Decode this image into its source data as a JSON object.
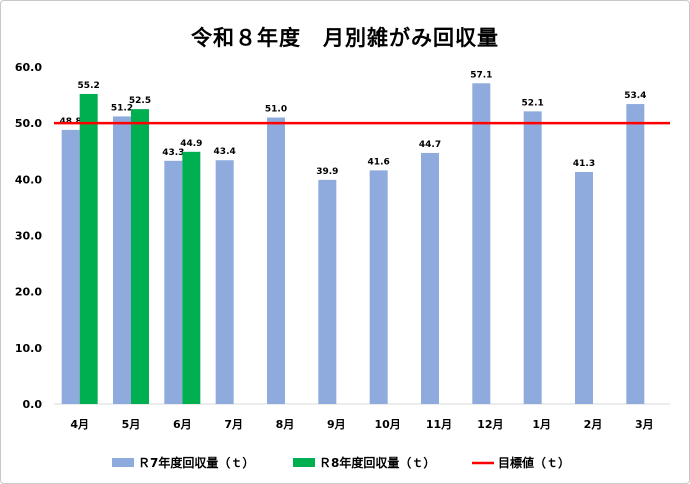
{
  "chart_data": {
    "type": "bar",
    "title": "令和８年度　月別雑がみ回収量",
    "categories": [
      "4月",
      "5月",
      "6月",
      "7月",
      "8月",
      "9月",
      "10月",
      "11月",
      "12月",
      "1月",
      "2月",
      "3月"
    ],
    "series": [
      {
        "name": "Ｒ7年度回収量（ｔ）",
        "color": "#8faadc",
        "values": [
          48.8,
          51.2,
          43.3,
          43.4,
          51.0,
          39.9,
          41.6,
          44.7,
          57.1,
          52.1,
          41.3,
          53.4
        ],
        "labels": [
          "48.8",
          "51.2",
          "43.3",
          "43.4",
          "51.0",
          "39.9",
          "41.6",
          "44.7",
          "57.1",
          "52.1",
          "41.3",
          "53.4"
        ]
      },
      {
        "name": "Ｒ8年度回収量（ｔ）",
        "color": "#00b050",
        "values": [
          55.2,
          52.5,
          44.9,
          null,
          null,
          null,
          null,
          null,
          null,
          null,
          null,
          null
        ],
        "labels": [
          "55.2",
          "52.5",
          "44.9",
          "",
          "",
          "",
          "",
          "",
          "",
          "",
          "",
          ""
        ]
      }
    ],
    "target": {
      "name": "目標値（ｔ）",
      "value": 50,
      "color": "#ff0000"
    },
    "ylim": [
      0,
      60
    ],
    "yticks": [
      "0.0",
      "10.0",
      "20.0",
      "30.0",
      "40.0",
      "50.0",
      "60.0"
    ],
    "grid": false,
    "legend_position": "bottom"
  }
}
